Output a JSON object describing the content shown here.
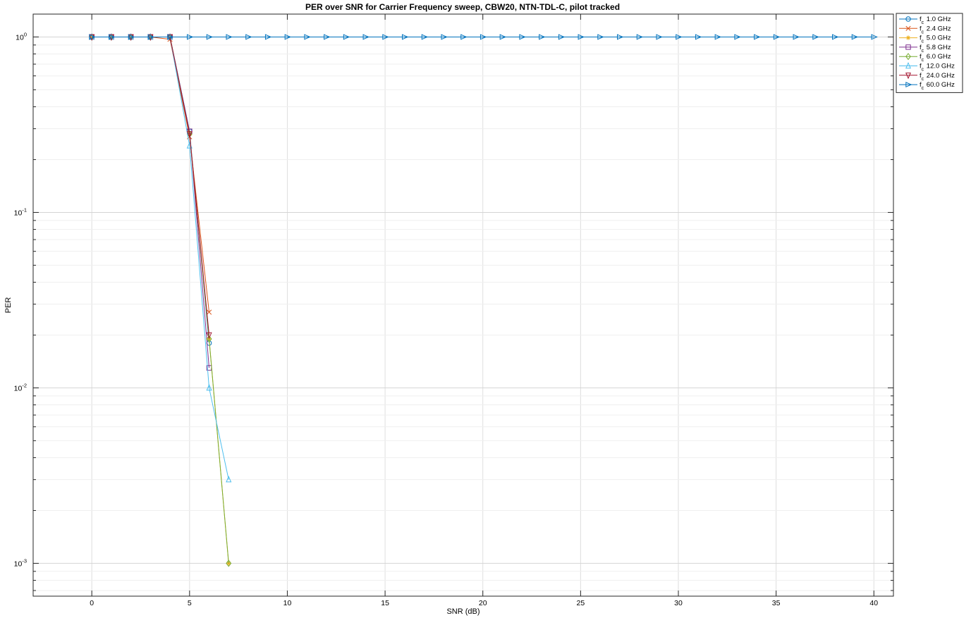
{
  "chart_data": {
    "type": "line",
    "title": "PER over SNR for Carrier Frequency sweep, CBW20, NTN-TDL-C, pilot tracked",
    "xlabel": "SNR (dB)",
    "ylabel": "PER",
    "xlim": [
      -3,
      41
    ],
    "xticks": [
      0,
      5,
      10,
      15,
      20,
      25,
      30,
      35,
      40
    ],
    "yscale": "log",
    "ylim": [
      0.00065,
      1.35
    ],
    "yticks": [
      {
        "value": 1,
        "base": "10",
        "exp": "0"
      },
      {
        "value": 0.1,
        "base": "10",
        "exp": "-1"
      },
      {
        "value": 0.01,
        "base": "10",
        "exp": "-2"
      },
      {
        "value": 0.001,
        "base": "10",
        "exp": "-3"
      }
    ],
    "grid": true,
    "legend_position": "outside-top-right",
    "series": [
      {
        "name": "1.0 GHz",
        "sub": "c",
        "prefix": "f",
        "color": "#0072BD",
        "marker": "circle",
        "x": [
          0,
          1,
          2,
          3,
          4,
          5,
          6
        ],
        "y": [
          1,
          1,
          1,
          1,
          1,
          0.29,
          0.018
        ]
      },
      {
        "name": "2.4 GHz",
        "sub": "c",
        "prefix": "f",
        "color": "#D95319",
        "marker": "x",
        "x": [
          0,
          1,
          2,
          3,
          4,
          5,
          6
        ],
        "y": [
          1,
          1,
          1,
          1,
          0.97,
          0.27,
          0.027
        ]
      },
      {
        "name": "5.0 GHz",
        "sub": "c",
        "prefix": "f",
        "color": "#EDB120",
        "marker": "asterisk",
        "x": [
          0,
          1,
          2,
          3,
          4,
          5,
          6,
          7
        ],
        "y": [
          1,
          1,
          1,
          1,
          1,
          0.28,
          0.019,
          0.001
        ]
      },
      {
        "name": "5.8 GHz",
        "sub": "c",
        "prefix": "f",
        "color": "#7E2F8E",
        "marker": "square",
        "x": [
          0,
          1,
          2,
          3,
          4,
          5,
          6
        ],
        "y": [
          1,
          1,
          1,
          1,
          1,
          0.29,
          0.013
        ]
      },
      {
        "name": "6.0 GHz",
        "sub": "c",
        "prefix": "f",
        "color": "#77AC30",
        "marker": "diamond",
        "x": [
          0,
          1,
          2,
          3,
          4,
          5,
          6,
          7
        ],
        "y": [
          1,
          1,
          1,
          1,
          1,
          0.28,
          0.019,
          0.001
        ]
      },
      {
        "name": "12.0 GHz",
        "sub": "c",
        "prefix": "f",
        "color": "#4DBEEE",
        "marker": "triangle-up",
        "x": [
          0,
          1,
          2,
          3,
          4,
          5,
          6,
          7
        ],
        "y": [
          1,
          1,
          1,
          1,
          1,
          0.24,
          0.01,
          0.003
        ]
      },
      {
        "name": "24.0 GHz",
        "sub": "c",
        "prefix": "f",
        "color": "#A2142F",
        "marker": "triangle-down",
        "x": [
          0,
          1,
          2,
          3,
          4,
          5,
          6
        ],
        "y": [
          1,
          1,
          1,
          1,
          1,
          0.28,
          0.02
        ]
      },
      {
        "name": "60.0 GHz",
        "sub": "c",
        "prefix": "f",
        "color": "#0072BD",
        "marker": "triangle-right",
        "x": [
          0,
          1,
          2,
          3,
          4,
          5,
          6,
          7,
          8,
          9,
          10,
          11,
          12,
          13,
          14,
          15,
          16,
          17,
          18,
          19,
          20,
          21,
          22,
          23,
          24,
          25,
          26,
          27,
          28,
          29,
          30,
          31,
          32,
          33,
          34,
          35,
          36,
          37,
          38,
          39,
          40
        ],
        "y": [
          1,
          1,
          1,
          1,
          1,
          1,
          1,
          1,
          1,
          1,
          1,
          1,
          1,
          1,
          1,
          1,
          1,
          1,
          1,
          1,
          1,
          1,
          1,
          1,
          1,
          1,
          1,
          1,
          1,
          1,
          1,
          1,
          1,
          1,
          1,
          1,
          1,
          1,
          1,
          1,
          1
        ]
      }
    ]
  }
}
